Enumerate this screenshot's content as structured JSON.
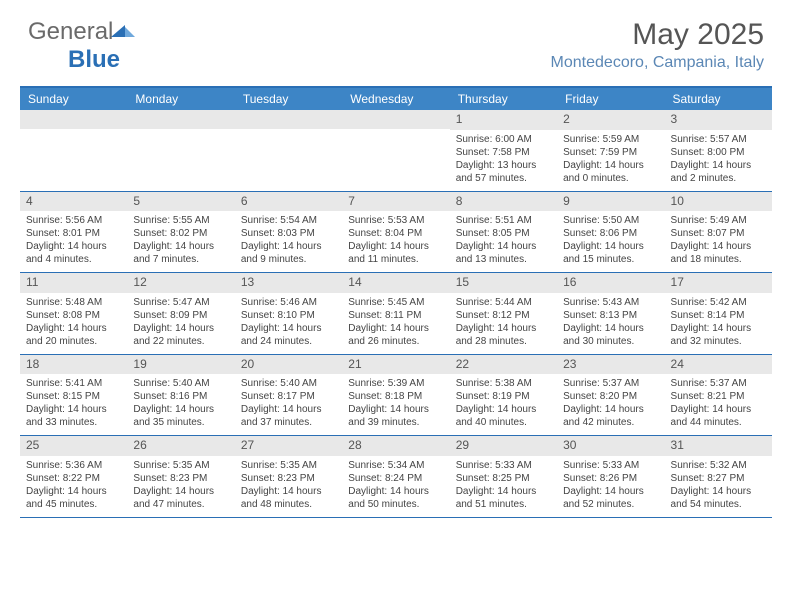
{
  "logo": {
    "text_part1": "General",
    "text_part2": "Blue"
  },
  "title": "May 2025",
  "location": "Montedecoro, Campania, Italy",
  "colors": {
    "header_bg": "#3d85c6",
    "border": "#2a6fb5",
    "daynum_bg": "#e8e8e8",
    "text": "#444444",
    "title_text": "#555555",
    "location_text": "#5b87b5"
  },
  "day_headers": [
    "Sunday",
    "Monday",
    "Tuesday",
    "Wednesday",
    "Thursday",
    "Friday",
    "Saturday"
  ],
  "weeks": [
    [
      {
        "day": "",
        "lines": []
      },
      {
        "day": "",
        "lines": []
      },
      {
        "day": "",
        "lines": []
      },
      {
        "day": "",
        "lines": []
      },
      {
        "day": "1",
        "lines": [
          "Sunrise: 6:00 AM",
          "Sunset: 7:58 PM",
          "Daylight: 13 hours and 57 minutes."
        ]
      },
      {
        "day": "2",
        "lines": [
          "Sunrise: 5:59 AM",
          "Sunset: 7:59 PM",
          "Daylight: 14 hours and 0 minutes."
        ]
      },
      {
        "day": "3",
        "lines": [
          "Sunrise: 5:57 AM",
          "Sunset: 8:00 PM",
          "Daylight: 14 hours and 2 minutes."
        ]
      }
    ],
    [
      {
        "day": "4",
        "lines": [
          "Sunrise: 5:56 AM",
          "Sunset: 8:01 PM",
          "Daylight: 14 hours and 4 minutes."
        ]
      },
      {
        "day": "5",
        "lines": [
          "Sunrise: 5:55 AM",
          "Sunset: 8:02 PM",
          "Daylight: 14 hours and 7 minutes."
        ]
      },
      {
        "day": "6",
        "lines": [
          "Sunrise: 5:54 AM",
          "Sunset: 8:03 PM",
          "Daylight: 14 hours and 9 minutes."
        ]
      },
      {
        "day": "7",
        "lines": [
          "Sunrise: 5:53 AM",
          "Sunset: 8:04 PM",
          "Daylight: 14 hours and 11 minutes."
        ]
      },
      {
        "day": "8",
        "lines": [
          "Sunrise: 5:51 AM",
          "Sunset: 8:05 PM",
          "Daylight: 14 hours and 13 minutes."
        ]
      },
      {
        "day": "9",
        "lines": [
          "Sunrise: 5:50 AM",
          "Sunset: 8:06 PM",
          "Daylight: 14 hours and 15 minutes."
        ]
      },
      {
        "day": "10",
        "lines": [
          "Sunrise: 5:49 AM",
          "Sunset: 8:07 PM",
          "Daylight: 14 hours and 18 minutes."
        ]
      }
    ],
    [
      {
        "day": "11",
        "lines": [
          "Sunrise: 5:48 AM",
          "Sunset: 8:08 PM",
          "Daylight: 14 hours and 20 minutes."
        ]
      },
      {
        "day": "12",
        "lines": [
          "Sunrise: 5:47 AM",
          "Sunset: 8:09 PM",
          "Daylight: 14 hours and 22 minutes."
        ]
      },
      {
        "day": "13",
        "lines": [
          "Sunrise: 5:46 AM",
          "Sunset: 8:10 PM",
          "Daylight: 14 hours and 24 minutes."
        ]
      },
      {
        "day": "14",
        "lines": [
          "Sunrise: 5:45 AM",
          "Sunset: 8:11 PM",
          "Daylight: 14 hours and 26 minutes."
        ]
      },
      {
        "day": "15",
        "lines": [
          "Sunrise: 5:44 AM",
          "Sunset: 8:12 PM",
          "Daylight: 14 hours and 28 minutes."
        ]
      },
      {
        "day": "16",
        "lines": [
          "Sunrise: 5:43 AM",
          "Sunset: 8:13 PM",
          "Daylight: 14 hours and 30 minutes."
        ]
      },
      {
        "day": "17",
        "lines": [
          "Sunrise: 5:42 AM",
          "Sunset: 8:14 PM",
          "Daylight: 14 hours and 32 minutes."
        ]
      }
    ],
    [
      {
        "day": "18",
        "lines": [
          "Sunrise: 5:41 AM",
          "Sunset: 8:15 PM",
          "Daylight: 14 hours and 33 minutes."
        ]
      },
      {
        "day": "19",
        "lines": [
          "Sunrise: 5:40 AM",
          "Sunset: 8:16 PM",
          "Daylight: 14 hours and 35 minutes."
        ]
      },
      {
        "day": "20",
        "lines": [
          "Sunrise: 5:40 AM",
          "Sunset: 8:17 PM",
          "Daylight: 14 hours and 37 minutes."
        ]
      },
      {
        "day": "21",
        "lines": [
          "Sunrise: 5:39 AM",
          "Sunset: 8:18 PM",
          "Daylight: 14 hours and 39 minutes."
        ]
      },
      {
        "day": "22",
        "lines": [
          "Sunrise: 5:38 AM",
          "Sunset: 8:19 PM",
          "Daylight: 14 hours and 40 minutes."
        ]
      },
      {
        "day": "23",
        "lines": [
          "Sunrise: 5:37 AM",
          "Sunset: 8:20 PM",
          "Daylight: 14 hours and 42 minutes."
        ]
      },
      {
        "day": "24",
        "lines": [
          "Sunrise: 5:37 AM",
          "Sunset: 8:21 PM",
          "Daylight: 14 hours and 44 minutes."
        ]
      }
    ],
    [
      {
        "day": "25",
        "lines": [
          "Sunrise: 5:36 AM",
          "Sunset: 8:22 PM",
          "Daylight: 14 hours and 45 minutes."
        ]
      },
      {
        "day": "26",
        "lines": [
          "Sunrise: 5:35 AM",
          "Sunset: 8:23 PM",
          "Daylight: 14 hours and 47 minutes."
        ]
      },
      {
        "day": "27",
        "lines": [
          "Sunrise: 5:35 AM",
          "Sunset: 8:23 PM",
          "Daylight: 14 hours and 48 minutes."
        ]
      },
      {
        "day": "28",
        "lines": [
          "Sunrise: 5:34 AM",
          "Sunset: 8:24 PM",
          "Daylight: 14 hours and 50 minutes."
        ]
      },
      {
        "day": "29",
        "lines": [
          "Sunrise: 5:33 AM",
          "Sunset: 8:25 PM",
          "Daylight: 14 hours and 51 minutes."
        ]
      },
      {
        "day": "30",
        "lines": [
          "Sunrise: 5:33 AM",
          "Sunset: 8:26 PM",
          "Daylight: 14 hours and 52 minutes."
        ]
      },
      {
        "day": "31",
        "lines": [
          "Sunrise: 5:32 AM",
          "Sunset: 8:27 PM",
          "Daylight: 14 hours and 54 minutes."
        ]
      }
    ]
  ]
}
